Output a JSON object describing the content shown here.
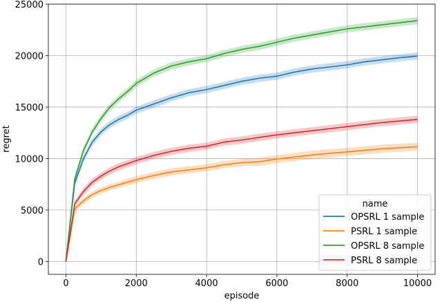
{
  "chart_data": {
    "type": "line",
    "title": "",
    "xlabel": "episode",
    "ylabel": "regret",
    "xlim": [
      -500,
      10500
    ],
    "ylim": [
      -1250,
      25000
    ],
    "xticks": [
      0,
      2000,
      4000,
      6000,
      8000,
      10000
    ],
    "yticks": [
      0,
      5000,
      10000,
      15000,
      20000,
      25000
    ],
    "grid": true,
    "legend": {
      "title": "name",
      "placement": "lower-right"
    },
    "x": [
      0,
      250,
      500,
      750,
      1000,
      1250,
      1500,
      1750,
      2000,
      2500,
      3000,
      3500,
      4000,
      4500,
      5000,
      5500,
      6000,
      6500,
      7000,
      7500,
      8000,
      8500,
      9000,
      9500,
      10000
    ],
    "series": [
      {
        "name": "OPSRL 1 sample",
        "color": "#1f77b4",
        "values": [
          0,
          7600,
          10000,
          11600,
          12600,
          13300,
          13800,
          14200,
          14700,
          15300,
          15900,
          16400,
          16700,
          17100,
          17500,
          17800,
          18000,
          18400,
          18700,
          18900,
          19100,
          19400,
          19600,
          19800,
          19950
        ],
        "band": [
          0,
          300,
          350,
          350,
          350,
          350,
          350,
          350,
          350,
          350,
          350,
          350,
          350,
          350,
          350,
          350,
          350,
          350,
          350,
          350,
          350,
          350,
          350,
          350,
          350
        ]
      },
      {
        "name": "PSRL 1 sample",
        "color": "#ff7f0e",
        "values": [
          0,
          5100,
          5900,
          6500,
          6900,
          7200,
          7450,
          7700,
          7950,
          8350,
          8700,
          8900,
          9100,
          9400,
          9600,
          9700,
          9950,
          10150,
          10350,
          10500,
          10650,
          10800,
          10950,
          11050,
          11150
        ],
        "band": [
          0,
          250,
          300,
          300,
          300,
          300,
          300,
          350,
          350,
          350,
          350,
          350,
          350,
          350,
          350,
          400,
          400,
          400,
          400,
          400,
          400,
          400,
          400,
          400,
          400
        ]
      },
      {
        "name": "OPSRL 8 sample",
        "color": "#2ca02c",
        "values": [
          0,
          8000,
          10800,
          12600,
          13900,
          15000,
          15800,
          16500,
          17300,
          18300,
          19000,
          19400,
          19700,
          20200,
          20600,
          20900,
          21300,
          21700,
          22000,
          22300,
          22600,
          22800,
          23000,
          23200,
          23400
        ],
        "band": [
          0,
          300,
          350,
          350,
          350,
          350,
          350,
          350,
          350,
          350,
          350,
          350,
          350,
          350,
          350,
          350,
          350,
          350,
          350,
          350,
          350,
          350,
          350,
          350,
          350
        ]
      },
      {
        "name": "PSRL 8 sample",
        "color": "#d62728",
        "values": [
          0,
          5600,
          6800,
          7700,
          8300,
          8800,
          9200,
          9500,
          9800,
          10300,
          10700,
          11000,
          11200,
          11600,
          11800,
          12050,
          12300,
          12500,
          12700,
          12900,
          13100,
          13300,
          13500,
          13650,
          13800
        ],
        "band": [
          0,
          300,
          350,
          350,
          350,
          350,
          350,
          350,
          350,
          350,
          350,
          350,
          350,
          350,
          350,
          350,
          350,
          350,
          350,
          350,
          350,
          350,
          350,
          350,
          350
        ]
      }
    ]
  }
}
